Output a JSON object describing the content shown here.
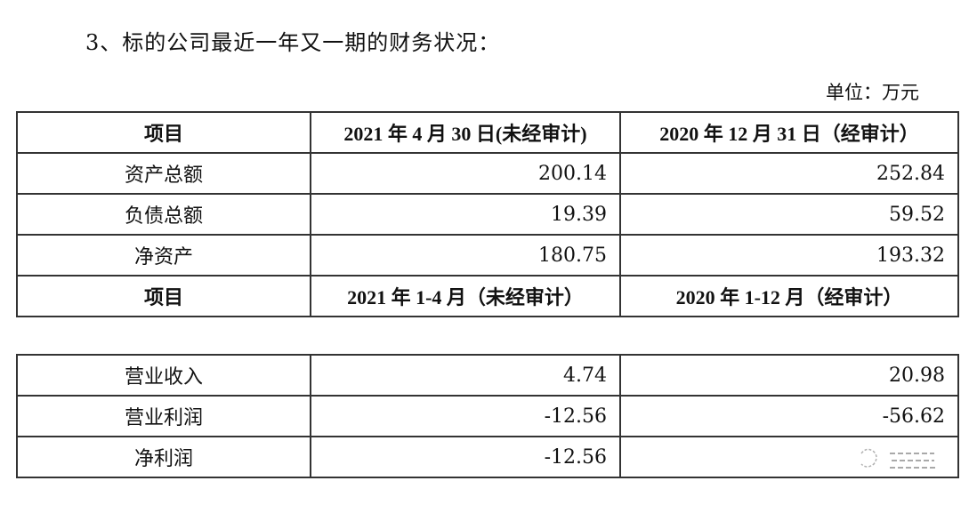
{
  "title": "3、标的公司最近一年又一期的财务状况：",
  "unit": "单位：万元",
  "table1": {
    "header": [
      "项目",
      "2021 年 4 月 30 日(未经审计)",
      "2020 年 12 月 31 日（经审计）"
    ],
    "rows": [
      [
        "资产总额",
        "200.14",
        "252.84"
      ],
      [
        "负债总额",
        "19.39",
        "59.52"
      ],
      [
        "净资产",
        "180.75",
        "193.32"
      ]
    ],
    "header2": [
      "项目",
      "2021 年 1-4 月（未经审计）",
      "2020 年 1-12 月（经审计）"
    ]
  },
  "table2": {
    "rows": [
      [
        "营业收入",
        "4.74",
        "20.98"
      ],
      [
        "营业利润",
        "-12.56",
        "-56.62"
      ],
      [
        "净利润",
        "-12.56",
        ""
      ]
    ]
  },
  "watermark_icon": "wechat-icon"
}
